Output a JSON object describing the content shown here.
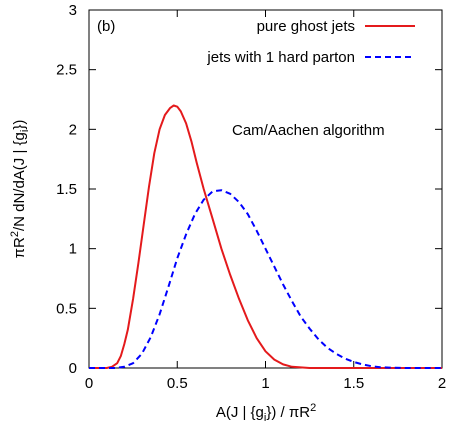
{
  "chart_data": {
    "type": "line",
    "panel_label": "(b)",
    "annotation": "Cam/Aachen algorithm",
    "xlabel": {
      "main": "A(J | {g",
      "sub": "i",
      "mid": "}) / πR",
      "sup": "2"
    },
    "ylabel": {
      "a": "πR",
      "sup": "2",
      "b": "/N dN/dA(J | {g",
      "sub": "i",
      "c": "})"
    },
    "xlim": [
      0,
      2
    ],
    "ylim": [
      0,
      3
    ],
    "xticks": [
      0,
      0.5,
      1,
      1.5,
      2
    ],
    "xtick_labels": [
      "0",
      "0.5",
      "1",
      "1.5",
      "2"
    ],
    "yticks": [
      0,
      0.5,
      1,
      1.5,
      2,
      2.5,
      3
    ],
    "ytick_labels": [
      "0",
      "0.5",
      "1",
      "1.5",
      "2",
      "2.5",
      "3"
    ],
    "grid": false,
    "legend_position": "top-right",
    "series": [
      {
        "name": "pure ghost jets",
        "color": "#e41a1c",
        "style": "solid",
        "x": [
          0.0,
          0.1,
          0.13,
          0.16,
          0.18,
          0.2,
          0.22,
          0.25,
          0.28,
          0.31,
          0.34,
          0.37,
          0.4,
          0.43,
          0.46,
          0.48,
          0.5,
          0.52,
          0.55,
          0.58,
          0.61,
          0.65,
          0.7,
          0.75,
          0.8,
          0.85,
          0.9,
          0.95,
          1.0,
          1.05,
          1.1,
          1.15,
          1.2,
          1.25,
          1.3,
          2.0
        ],
        "y": [
          0.0,
          0.0,
          0.01,
          0.04,
          0.1,
          0.2,
          0.32,
          0.58,
          0.88,
          1.2,
          1.52,
          1.8,
          2.0,
          2.12,
          2.18,
          2.2,
          2.19,
          2.15,
          2.05,
          1.9,
          1.72,
          1.5,
          1.25,
          1.0,
          0.78,
          0.58,
          0.4,
          0.25,
          0.14,
          0.07,
          0.03,
          0.01,
          0.005,
          0.0,
          0.0,
          0.0
        ]
      },
      {
        "name": "jets with 1 hard parton",
        "color": "#0000ff",
        "style": "dashed",
        "x": [
          0.0,
          0.15,
          0.2,
          0.25,
          0.3,
          0.35,
          0.4,
          0.45,
          0.5,
          0.55,
          0.6,
          0.65,
          0.7,
          0.75,
          0.8,
          0.85,
          0.9,
          0.95,
          1.0,
          1.05,
          1.1,
          1.15,
          1.2,
          1.25,
          1.3,
          1.35,
          1.4,
          1.45,
          1.5,
          1.55,
          1.6,
          1.65,
          1.7,
          1.8,
          2.0
        ],
        "y": [
          0.0,
          0.0,
          0.01,
          0.04,
          0.12,
          0.26,
          0.45,
          0.68,
          0.92,
          1.12,
          1.29,
          1.41,
          1.48,
          1.49,
          1.46,
          1.39,
          1.29,
          1.15,
          1.0,
          0.85,
          0.7,
          0.56,
          0.43,
          0.33,
          0.24,
          0.17,
          0.12,
          0.08,
          0.05,
          0.03,
          0.015,
          0.007,
          0.003,
          0.0,
          0.0
        ]
      }
    ]
  }
}
